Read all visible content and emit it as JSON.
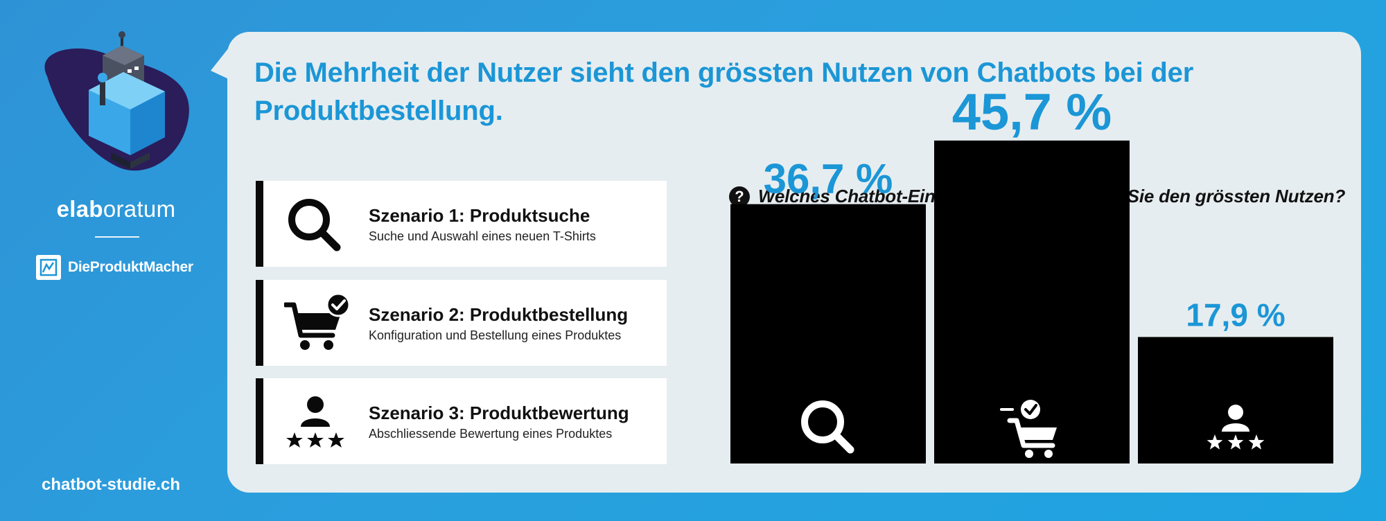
{
  "brand": {
    "name_bold": "elab",
    "name_light": "oratum",
    "partner": "DieProduktMacher",
    "website": "chatbot-studie.ch"
  },
  "headline": "Die Mehrheit der Nutzer sieht den grössten Nutzen von Chatbots bei der Produktbestellung.",
  "scenarios": [
    {
      "title": "Szenario 1: Produktsuche",
      "desc": "Suche und Auswahl eines neuen T-Shirts",
      "icon": "search-icon"
    },
    {
      "title": "Szenario 2: Produktbestellung",
      "desc": "Konfiguration und Bestellung eines Produktes",
      "icon": "cart-check-icon"
    },
    {
      "title": "Szenario 3: Produktbewertung",
      "desc": "Abschliessende Bewertung eines Produktes",
      "icon": "user-stars-icon"
    }
  ],
  "colors": {
    "accent": "#1b96d6",
    "bar": "#000000",
    "card": "#e6edf0"
  },
  "chart_data": {
    "type": "bar",
    "title": "Welches Chatbot-Einsatzszenario bietet für Sie den grössten Nutzen?",
    "categories": [
      "Produktsuche",
      "Produktbestellung",
      "Produktbewertung"
    ],
    "values": [
      36.7,
      45.7,
      17.9
    ],
    "labels": [
      "36,7 %",
      "45,7 %",
      "17,9 %"
    ],
    "category_icons": [
      "search-icon",
      "cart-check-icon",
      "user-stars-icon"
    ],
    "ylim": [
      0,
      100
    ],
    "grid": false,
    "legend": "none"
  }
}
